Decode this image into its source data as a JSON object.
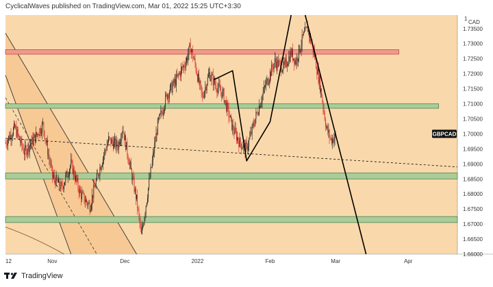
{
  "header": {
    "publisher_line": "CyclicalWaves published on TradingView.com, Mar 01, 2022 15:25 UTC+3:30"
  },
  "footer": {
    "brand": "TradingView"
  },
  "colors": {
    "background": "#f9d8ab",
    "bear": "#d32020",
    "bull": "#1b1b1b",
    "zone_green": "#a9cc98",
    "zone_red": "#ee9a8e",
    "line": "#000000",
    "channel_fill": "#f6c48c"
  },
  "chart_data": {
    "type": "candlestick",
    "symbol_label": "GBPCAD",
    "axis_unit": "CAD",
    "top_label": "1",
    "y_ticks": [
      1.735,
      1.73,
      1.725,
      1.72,
      1.715,
      1.71,
      1.705,
      1.7,
      1.695,
      1.69,
      1.685,
      1.68,
      1.675,
      1.67,
      1.665,
      1.66
    ],
    "y_tick_labels": [
      "1.73500",
      "1.73000",
      "1.72500",
      "1.72000",
      "1.71500",
      "1.71000",
      "1.70500",
      "1.70000",
      "1.69500",
      "1.69000",
      "1.68500",
      "1.68000",
      "1.67500",
      "1.67000",
      "1.66500",
      "1.66000"
    ],
    "ylim": [
      1.66,
      1.7395
    ],
    "x_ticks": [
      {
        "label": "12",
        "index": 0
      },
      {
        "label": "Nov",
        "index": 20
      },
      {
        "label": "Dec",
        "index": 51
      },
      {
        "label": "2022",
        "index": 82
      },
      {
        "label": "Feb",
        "index": 113
      },
      {
        "label": "Mar",
        "index": 141
      },
      {
        "label": "Apr",
        "index": 172
      }
    ],
    "x_range": [
      0,
      193
    ],
    "last_price": 1.7,
    "price_path": [
      [
        0,
        1.697
      ],
      [
        4,
        1.702
      ],
      [
        8,
        1.694
      ],
      [
        12,
        1.698
      ],
      [
        16,
        1.703
      ],
      [
        20,
        1.686
      ],
      [
        24,
        1.682
      ],
      [
        28,
        1.69
      ],
      [
        32,
        1.68
      ],
      [
        36,
        1.676
      ],
      [
        40,
        1.688
      ],
      [
        44,
        1.698
      ],
      [
        48,
        1.696
      ],
      [
        50,
        1.702
      ],
      [
        53,
        1.69
      ],
      [
        56,
        1.678
      ],
      [
        58,
        1.666
      ],
      [
        61,
        1.682
      ],
      [
        65,
        1.703
      ],
      [
        69,
        1.713
      ],
      [
        73,
        1.718
      ],
      [
        77,
        1.724
      ],
      [
        79,
        1.729
      ],
      [
        81,
        1.723
      ],
      [
        84,
        1.712
      ],
      [
        87,
        1.72
      ],
      [
        90,
        1.716
      ],
      [
        93,
        1.713
      ],
      [
        97,
        1.702
      ],
      [
        100,
        1.697
      ],
      [
        103,
        1.695
      ],
      [
        107,
        1.706
      ],
      [
        111,
        1.716
      ],
      [
        115,
        1.724
      ],
      [
        119,
        1.722
      ],
      [
        122,
        1.727
      ],
      [
        124,
        1.724
      ],
      [
        127,
        1.732
      ],
      [
        129,
        1.735
      ],
      [
        132,
        1.726
      ],
      [
        135,
        1.713
      ],
      [
        137,
        1.702
      ],
      [
        139,
        1.698
      ],
      [
        141,
        1.699
      ]
    ],
    "zones": [
      {
        "color": "red",
        "y_low": 1.7265,
        "y_high": 1.728,
        "x_from": 0,
        "x_to": 168
      },
      {
        "color": "green",
        "y_low": 1.7085,
        "y_high": 1.71,
        "x_from": 0,
        "x_to": 185
      },
      {
        "color": "green",
        "y_low": 1.685,
        "y_high": 1.687,
        "x_from": 0,
        "x_to": 193
      },
      {
        "color": "green",
        "y_low": 1.6705,
        "y_high": 1.6725,
        "x_from": 0,
        "x_to": 193
      }
    ],
    "trendlines": [
      {
        "style": "solid",
        "width": 1.6,
        "points": [
          [
            89,
            1.718
          ],
          [
            97,
            1.721
          ],
          [
            103,
            1.691
          ],
          [
            113,
            1.704
          ],
          [
            122,
            1.7395
          ]
        ]
      },
      {
        "style": "solid",
        "width": 1.6,
        "points": [
          [
            128,
            1.7395
          ],
          [
            154,
            1.66
          ]
        ]
      },
      {
        "style": "dashed",
        "width": 0.8,
        "points": [
          [
            0,
            1.6985
          ],
          [
            193,
            1.689
          ]
        ]
      }
    ],
    "channel": {
      "upper": [
        [
          0,
          1.7335
        ],
        [
          56,
          1.66
        ]
      ],
      "middle": [
        [
          0,
          1.712
        ],
        [
          39,
          1.66
        ]
      ],
      "lower": [
        [
          0,
          1.7195
        ],
        [
          28,
          1.66
        ]
      ]
    },
    "lower_arc": [
      [
        0,
        1.669
      ],
      [
        25,
        1.66
      ]
    ]
  }
}
